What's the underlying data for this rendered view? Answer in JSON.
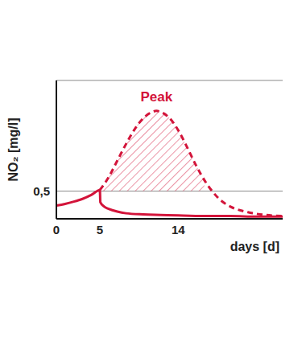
{
  "chart_data": {
    "type": "line",
    "x_label": "days [d]",
    "y_label": "NO₂ [mg/l]",
    "xlim": [
      0,
      26
    ],
    "xticks": [
      0,
      5,
      14
    ],
    "ylim": [
      0,
      2.5
    ],
    "yticks": [
      {
        "value": 0.5,
        "label": "0,5"
      }
    ],
    "grid": true,
    "series": [
      {
        "color": "#d3143a",
        "line_style": "solid",
        "x": [
          0,
          1,
          2,
          3,
          4,
          5,
          5.05,
          5.5,
          6,
          7,
          8,
          10,
          12,
          14,
          17,
          20,
          23,
          26
        ],
        "values": [
          0.24,
          0.27,
          0.31,
          0.36,
          0.43,
          0.52,
          0.3,
          0.22,
          0.18,
          0.13,
          0.1,
          0.08,
          0.07,
          0.06,
          0.05,
          0.05,
          0.04,
          0.04
        ]
      },
      {
        "color": "#d3143a",
        "line_style": "dashed",
        "x": [
          5,
          6,
          7,
          8,
          9,
          10,
          11,
          11.5,
          12,
          13,
          14,
          15,
          16,
          17,
          18,
          19,
          20,
          22,
          24,
          26
        ],
        "values": [
          0.52,
          0.75,
          1.05,
          1.35,
          1.62,
          1.82,
          1.93,
          1.95,
          1.93,
          1.82,
          1.6,
          1.3,
          0.98,
          0.7,
          0.48,
          0.32,
          0.22,
          0.12,
          0.07,
          0.05
        ]
      }
    ],
    "annotations": [
      {
        "text": "Peak",
        "x": 11.5,
        "y": 1.95
      }
    ]
  }
}
